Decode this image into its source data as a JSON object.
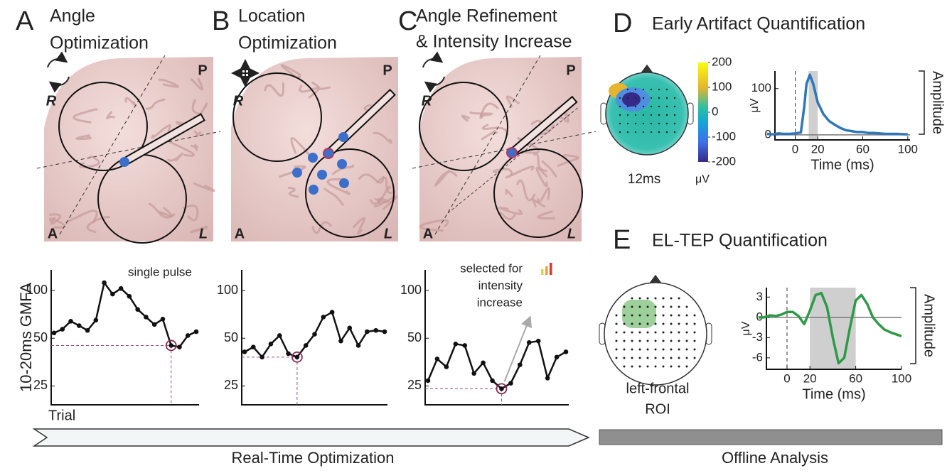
{
  "panels": [
    {
      "letter": "A",
      "title": [
        "Angle",
        "Optimization"
      ]
    },
    {
      "letter": "B",
      "title": [
        "Location",
        "Optimization"
      ]
    },
    {
      "letter": "C",
      "title": [
        "Angle Refinement",
        "& Intensity Increase"
      ]
    },
    {
      "letter": "D",
      "title": [
        "Early Artifact Quantification"
      ]
    },
    {
      "letter": "E",
      "title": [
        "EL-TEP Quantification"
      ]
    }
  ],
  "brain_labels": {
    "posterior": "P",
    "right": "R",
    "anterior": "A",
    "left": "L"
  },
  "topomaps": [
    {
      "caption": [
        "12ms"
      ],
      "colorbar": {
        "lim": [
          -200,
          200
        ],
        "ticks": [
          200,
          100,
          0,
          -100,
          -200
        ],
        "label": "μV"
      }
    },
    {
      "caption": [
        "left-frontal",
        "ROI"
      ]
    }
  ],
  "stages": [
    {
      "label": "Real-Time Optimization"
    },
    {
      "label": "Offline Analysis"
    }
  ],
  "chart_data": [
    {
      "type": "line",
      "ylabel": "10-20ms GMFA",
      "xlabel": "Trial",
      "annotation": [
        "single pulse"
      ],
      "values": [
        54,
        57,
        64,
        60,
        56,
        65,
        112,
        95,
        103,
        92,
        76,
        68,
        61,
        66,
        45,
        44,
        52,
        55
      ],
      "selected": 14,
      "color": "#111111",
      "log_y": true,
      "ylim": [
        19,
        135
      ],
      "yticks": [
        25,
        50,
        100
      ]
    },
    {
      "type": "line",
      "values": [
        41,
        44,
        38,
        46,
        52,
        40,
        38,
        45,
        53,
        68,
        73,
        48,
        58,
        45,
        55,
        56,
        55
      ],
      "selected": 6,
      "color": "#111111",
      "log_y": true,
      "ylim": [
        19,
        135
      ],
      "yticks": [
        25,
        50,
        100
      ]
    },
    {
      "type": "line",
      "annotation": [
        "selected for",
        "intensity",
        "increase"
      ],
      "values": [
        27,
        37,
        33,
        46,
        45,
        30,
        35,
        27,
        24,
        26,
        34,
        47,
        48,
        28,
        38,
        41
      ],
      "selected": 8,
      "color": "#111111",
      "log_y": true,
      "ylim": [
        19,
        135
      ],
      "yticks": [
        25,
        50,
        100
      ]
    },
    {
      "type": "line",
      "ylabel": "μV",
      "xlabel": "Time (ms)",
      "side_label": "Amplitude",
      "band": [
        12,
        20
      ],
      "zero_lines": true,
      "x": [
        -25,
        -20,
        -15,
        -10,
        -5,
        0,
        5,
        8,
        10,
        13,
        16,
        20,
        25,
        30,
        35,
        40,
        45,
        50,
        55,
        60,
        65,
        70,
        80,
        90,
        100
      ],
      "values": [
        2,
        1,
        3,
        2,
        2,
        3,
        5,
        60,
        110,
        130,
        110,
        70,
        45,
        30,
        22,
        15,
        10,
        8,
        6,
        6,
        4,
        4,
        2,
        2,
        1
      ],
      "color": "#2f77b8",
      "xlim": [
        -18,
        102
      ],
      "ylim": [
        -11,
        138
      ],
      "xticks": [
        0,
        20,
        60,
        100
      ],
      "yticks": [
        0,
        100
      ]
    },
    {
      "type": "line",
      "ylabel": "μV",
      "xlabel": "Time (ms)",
      "side_label": "Amplitude",
      "band": [
        20,
        60
      ],
      "zero_lines": true,
      "x": [
        -25,
        -20,
        -15,
        -10,
        -5,
        0,
        5,
        10,
        15,
        20,
        25,
        30,
        35,
        40,
        45,
        50,
        55,
        60,
        65,
        70,
        75,
        80,
        85,
        90,
        95,
        100
      ],
      "values": [
        0,
        0,
        0.3,
        0.2,
        0.4,
        0.8,
        0.8,
        0.2,
        -1,
        1,
        3.3,
        3.6,
        1.5,
        -3,
        -6.8,
        -6,
        -1.5,
        2.5,
        3.3,
        2,
        0,
        -1,
        -1.8,
        -2.2,
        -2.5,
        -2.8
      ],
      "color": "#2e9a48",
      "xlim": [
        -18,
        100
      ],
      "ylim": [
        -7.7,
        4.4
      ],
      "xticks": [
        0,
        20,
        60,
        100
      ],
      "yticks": [
        3,
        0,
        -3,
        -6
      ]
    }
  ]
}
